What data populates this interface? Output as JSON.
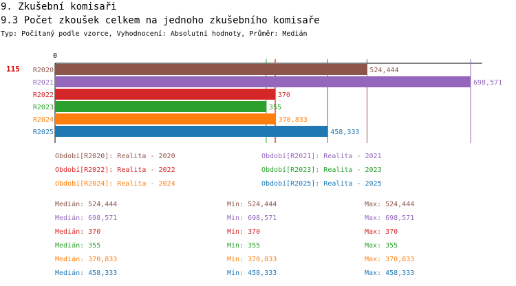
{
  "header": {
    "section_title": "9. Zkušební komisaři",
    "chart_title": "9.3 Počet zkoušek celkem na jednoho zkušebního komisaře",
    "meta": "Typ: Počítaný podle vzorce, Vyhodnocení: Absolutní hodnoty, Průměr: Medián"
  },
  "chart_data": {
    "type": "bar",
    "orientation": "horizontal",
    "axis_zero_label": "0",
    "reference_value_label": "115",
    "xlim": [
      0,
      730
    ],
    "categories": [
      "R2020",
      "R2021",
      "R2022",
      "R2023",
      "R2024",
      "R2025"
    ],
    "values": [
      524.444,
      698.571,
      370,
      355,
      370.833,
      458.333
    ],
    "value_labels": [
      "524,444",
      "698,571",
      "370",
      "355",
      "370,833",
      "458,333"
    ],
    "colors": [
      "#8c564b",
      "#9467bd",
      "#d62728",
      "#2ca02c",
      "#ff7f0e",
      "#1f77b4"
    ]
  },
  "legend": [
    {
      "text": "Období[R2020]: Realita - 2020",
      "color": "#8c564b"
    },
    {
      "text": "Období[R2021]: Realita - 2021",
      "color": "#9467bd"
    },
    {
      "text": "Období[R2022]: Realita - 2022",
      "color": "#d62728"
    },
    {
      "text": "Období[R2023]: Realita - 2023",
      "color": "#2ca02c"
    },
    {
      "text": "Období[R2024]: Realita - 2024",
      "color": "#ff7f0e"
    },
    {
      "text": "Období[R2025]: Realita - 2025",
      "color": "#1f77b4"
    }
  ],
  "stats": [
    {
      "median": "Medián: 524,444",
      "min": "Min: 524,444",
      "max": "Max: 524,444",
      "color": "#8c564b"
    },
    {
      "median": "Medián: 698,571",
      "min": "Min: 698,571",
      "max": "Max: 698,571",
      "color": "#9467bd"
    },
    {
      "median": "Medián: 370",
      "min": "Min: 370",
      "max": "Max: 370",
      "color": "#d62728"
    },
    {
      "median": "Medián: 355",
      "min": "Min: 355",
      "max": "Max: 355",
      "color": "#2ca02c"
    },
    {
      "median": "Medián: 370,833",
      "min": "Min: 370,833",
      "max": "Max: 370,833",
      "color": "#ff7f0e"
    },
    {
      "median": "Medián: 458,333",
      "min": "Min: 458,333",
      "max": "Max: 458,333",
      "color": "#1f77b4"
    }
  ]
}
